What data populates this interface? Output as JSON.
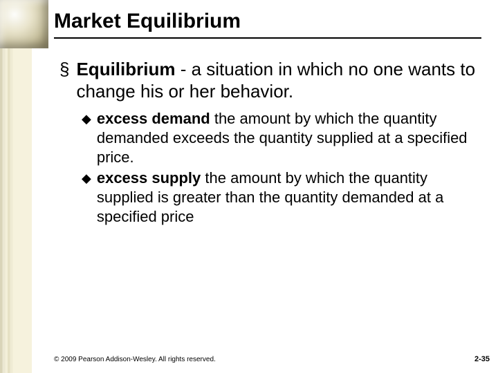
{
  "decor": {
    "left_strip_colors": [
      "#d9d4b8",
      "#ece8d2",
      "#f3efd9",
      "#e6e1c4",
      "#efebd4",
      "#f6f2dd"
    ],
    "corner_gradient": [
      "#fdfdfb",
      "#e9e4cc",
      "#c9c2a0",
      "#8f8660"
    ],
    "background_color": "#ffffff",
    "rule_color": "#000000"
  },
  "typography": {
    "title_fontsize": 30,
    "level1_fontsize": 26,
    "level2_fontsize": 22,
    "footer_fontsize": 10,
    "font_family": "Arial"
  },
  "slide": {
    "title": "Market Equilibrium",
    "l1_bold": "Equilibrium",
    "l1_rest": " - a situation in which no one wants to change his or her behavior.",
    "l2a_bold": "excess demand",
    "l2a_rest": " the amount by which the quantity demanded exceeds the quantity supplied at a specified price.",
    "l2b_bold": "excess supply",
    "l2b_rest": " the amount by which the quantity supplied is greater than the quantity demanded at a specified price"
  },
  "footer": {
    "copyright": "© 2009 Pearson Addison-Wesley. All rights reserved.",
    "page": "2-35"
  }
}
